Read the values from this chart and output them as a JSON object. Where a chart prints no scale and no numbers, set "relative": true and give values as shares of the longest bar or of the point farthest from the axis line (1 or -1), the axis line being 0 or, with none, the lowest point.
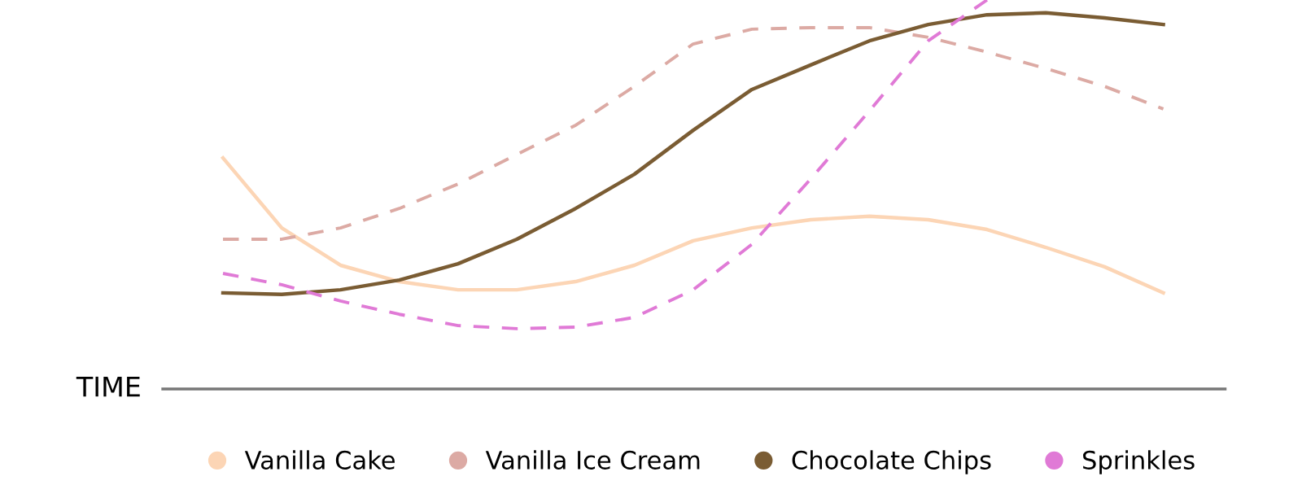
{
  "chart_data": {
    "type": "line",
    "relative": true,
    "xlabel": "TIME",
    "legend": "bottom",
    "grid": false,
    "marker": "none",
    "categories": [
      null,
      null,
      null,
      null,
      null,
      null,
      null,
      null,
      null,
      null,
      null,
      null,
      null,
      null,
      null,
      null,
      null
    ],
    "series": [
      {
        "name": "Vanilla Cake",
        "color": "#fcd5b5",
        "line_style": "solid",
        "values": [
          0.594,
          0.414,
          0.318,
          0.276,
          0.255,
          0.255,
          0.276,
          0.318,
          0.381,
          0.414,
          0.435,
          0.444,
          0.435,
          0.41,
          0.364,
          0.314,
          0.247
        ]
      },
      {
        "name": "Vanilla Ice Cream",
        "color": "#dcaaa4",
        "line_style": "dashed",
        "values": [
          0.385,
          0.385,
          0.414,
          0.464,
          0.527,
          0.603,
          0.678,
          0.778,
          0.887,
          0.925,
          0.929,
          0.929,
          0.904,
          0.866,
          0.824,
          0.778,
          0.72
        ]
      },
      {
        "name": "Chocolate Chips",
        "color": "#7a5c33",
        "line_style": "solid",
        "values": [
          0.247,
          0.243,
          0.255,
          0.28,
          0.322,
          0.385,
          0.464,
          0.552,
          0.665,
          0.77,
          0.833,
          0.895,
          0.937,
          0.962,
          0.967,
          0.954,
          0.937
        ]
      },
      {
        "name": "Sprinkles",
        "color": "#e07ad6",
        "line_style": "dashed",
        "values": [
          0.297,
          0.268,
          0.226,
          0.192,
          0.163,
          0.155,
          0.159,
          0.184,
          0.255,
          0.372,
          0.54,
          0.715,
          0.895,
          1.0,
          null,
          null,
          null
        ]
      }
    ]
  }
}
